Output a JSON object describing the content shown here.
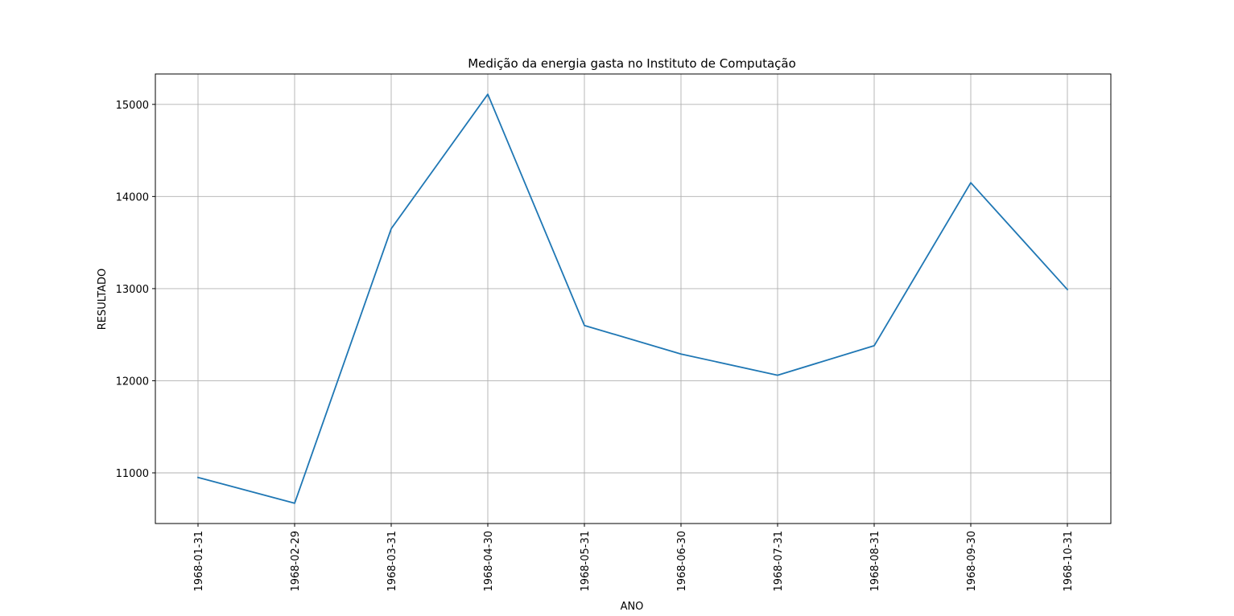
{
  "chart_data": {
    "type": "line",
    "title": "Medição da energia gasta no Instituto de Computação",
    "xlabel": "ANO",
    "ylabel": "RESULTADO",
    "x": [
      "1968-01-31",
      "1968-02-29",
      "1968-03-31",
      "1968-04-30",
      "1968-05-31",
      "1968-06-30",
      "1968-07-31",
      "1968-08-31",
      "1968-09-30",
      "1968-10-31"
    ],
    "series": [
      {
        "values": [
          10950,
          10670,
          13650,
          15110,
          12600,
          12290,
          12060,
          12380,
          14150,
          12990
        ],
        "color": "#1f77b4"
      }
    ],
    "yticks": [
      "11000",
      "12000",
      "13000",
      "14000",
      "15000"
    ],
    "ylim": [
      10450,
      15330
    ],
    "grid": true,
    "x_tick_rotation": "vertical"
  }
}
